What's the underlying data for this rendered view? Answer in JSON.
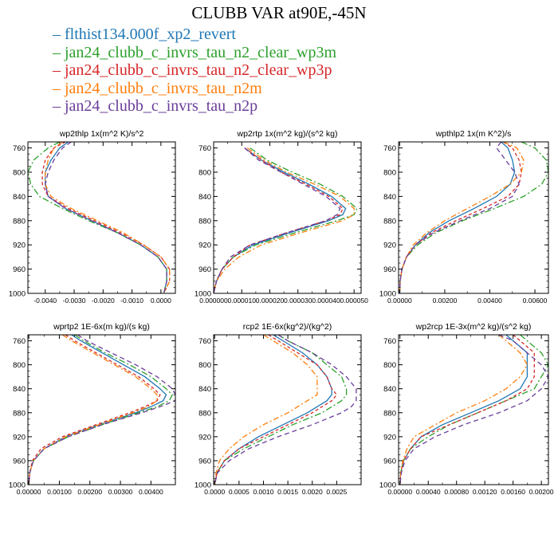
{
  "title": "CLUBB VAR at90E,-45N",
  "legend": [
    {
      "label": "flthist134.000f_xp2_revert",
      "color": "#1f77b4"
    },
    {
      "label": "jan24_clubb_c_invrs_tau_n2_clear_wp3m",
      "color": "#2ca02c"
    },
    {
      "label": "jan24_clubb_c_invrs_tau_n2_clear_wp3p",
      "color": "#d62728"
    },
    {
      "label": "jan24_clubb_c_invrs_tau_n2m",
      "color": "#ff7f0e"
    },
    {
      "label": "jan24_clubb_c_invrs_tau_n2p",
      "color": "#6a3d9a"
    }
  ],
  "chart_data": [
    {
      "type": "line",
      "title": "wp2thlp  1x(m^2 K)/s^2",
      "y": [
        750,
        760,
        780,
        800,
        820,
        840,
        860,
        880,
        900,
        920,
        940,
        960,
        980,
        1000
      ],
      "ylim": [
        1000,
        750
      ],
      "yticks": [
        760,
        800,
        840,
        880,
        920,
        960,
        1000
      ],
      "xlim": [
        -0.0046,
        0.0005
      ],
      "xticks": [
        -0.004,
        -0.003,
        -0.002,
        -0.001,
        0.0
      ],
      "xticklabels": [
        "-0.0040",
        "-0.0030",
        "-0.0020",
        "-0.0010",
        "0.0000"
      ],
      "series": [
        {
          "values": [
            -0.0032,
            -0.0035,
            -0.0038,
            -0.004,
            -0.004,
            -0.0039,
            -0.0033,
            -0.0024,
            -0.0015,
            -0.0007,
            -0.0001,
            0.0002,
            0.0002,
            0.0001
          ]
        },
        {
          "values": [
            -0.0035,
            -0.0039,
            -0.0044,
            -0.0046,
            -0.0045,
            -0.0042,
            -0.0034,
            -0.0025,
            -0.0015,
            -0.0007,
            -0.0001,
            0.0002,
            0.0002,
            0.0001
          ]
        },
        {
          "values": [
            -0.0033,
            -0.0037,
            -0.004,
            -0.0041,
            -0.0041,
            -0.0039,
            -0.0032,
            -0.0023,
            -0.0014,
            -0.0006,
            0.0,
            0.0003,
            0.0003,
            0.0001
          ]
        },
        {
          "values": [
            -0.0034,
            -0.0037,
            -0.0039,
            -0.004,
            -0.004,
            -0.0038,
            -0.0031,
            -0.0022,
            -0.0013,
            -0.0006,
            0.0,
            0.0003,
            0.0003,
            0.0001
          ]
        },
        {
          "values": [
            -0.0031,
            -0.0034,
            -0.0037,
            -0.0039,
            -0.004,
            -0.0039,
            -0.0033,
            -0.0024,
            -0.0015,
            -0.0007,
            -0.0001,
            0.0002,
            0.0002,
            0.0001
          ]
        }
      ]
    },
    {
      "type": "line",
      "title": "wp2rtp  1x(m^2 kg)/(s^2 kg)",
      "y": [
        760,
        780,
        800,
        820,
        840,
        860,
        870,
        880,
        900,
        920,
        940,
        960,
        980,
        1000
      ],
      "ylim": [
        1000,
        750
      ],
      "yticks": [
        760,
        800,
        840,
        880,
        920,
        960,
        1000
      ],
      "xlim": [
        0,
        5.25e-05
      ],
      "xticks": [
        0,
        1e-05,
        2e-05,
        3e-05,
        4e-05,
        5e-05
      ],
      "xticklabels": [
        "0.000000",
        "0.000010",
        "0.000020",
        "0.000030",
        "0.000040",
        "0.000050"
      ],
      "series": [
        {
          "values": [
            1.1e-05,
            1.7e-05,
            2.5e-05,
            3.4e-05,
            4.2e-05,
            4.7e-05,
            4.6e-05,
            4.1e-05,
            2.7e-05,
            1.4e-05,
            7e-06,
            3e-06,
            1e-06,
            0.0
          ]
        },
        {
          "values": [
            1.3e-05,
            1.9e-05,
            2.8e-05,
            3.8e-05,
            4.6e-05,
            5.1e-05,
            5e-05,
            4.4e-05,
            2.9e-05,
            1.5e-05,
            7e-06,
            3e-06,
            1e-06,
            0.0
          ]
        },
        {
          "values": [
            1.1e-05,
            1.7e-05,
            2.4e-05,
            3.3e-05,
            4.1e-05,
            4.6e-05,
            4.5e-05,
            4e-05,
            2.6e-05,
            1.3e-05,
            7e-06,
            3e-06,
            1e-06,
            0.0
          ]
        },
        {
          "values": [
            1.2e-05,
            1.8e-05,
            2.6e-05,
            3.6e-05,
            4.5e-05,
            5e-05,
            5e-05,
            4.6e-05,
            3.1e-05,
            1.7e-05,
            9e-06,
            4e-06,
            1e-06,
            0.0
          ]
        },
        {
          "values": [
            1.1e-05,
            1.6e-05,
            2.4e-05,
            3.2e-05,
            4e-05,
            4.5e-05,
            4.4e-05,
            4e-05,
            2.6e-05,
            1.3e-05,
            6e-06,
            3e-06,
            1e-06,
            0.0
          ]
        }
      ]
    },
    {
      "type": "line",
      "title": "wpthlp2  1x(m K^2)/s",
      "y": [
        750,
        760,
        780,
        800,
        820,
        840,
        860,
        880,
        900,
        920,
        940,
        960,
        980,
        1000
      ],
      "ylim": [
        1000,
        750
      ],
      "yticks": [
        760,
        800,
        840,
        880,
        920,
        960,
        1000
      ],
      "xlim": [
        -5e-05,
        0.0066
      ],
      "xticks": [
        0,
        0.002,
        0.004,
        0.006
      ],
      "xticklabels": [
        "0.00000",
        "0.00200",
        "0.00400",
        "0.00600"
      ],
      "series": [
        {
          "values": [
            0.0045,
            0.0048,
            0.005,
            0.0051,
            0.0049,
            0.0043,
            0.0033,
            0.0022,
            0.0013,
            0.0007,
            0.0003,
            0.0001,
            2e-05,
            0.0
          ]
        },
        {
          "values": [
            0.0054,
            0.006,
            0.0065,
            0.0066,
            0.0063,
            0.0055,
            0.0042,
            0.0028,
            0.0016,
            0.0008,
            0.0003,
            0.0001,
            2e-05,
            0.0
          ]
        },
        {
          "values": [
            0.0046,
            0.005,
            0.0053,
            0.0054,
            0.0053,
            0.0048,
            0.0037,
            0.0025,
            0.0014,
            0.0007,
            0.0003,
            0.0001,
            2e-05,
            0.0
          ]
        },
        {
          "values": [
            0.0046,
            0.0052,
            0.0055,
            0.0054,
            0.0049,
            0.004,
            0.003,
            0.002,
            0.0012,
            0.0006,
            0.0003,
            0.0001,
            2e-05,
            0.0
          ]
        },
        {
          "values": [
            0.0045,
            0.0043,
            0.0047,
            0.0051,
            0.0053,
            0.005,
            0.004,
            0.0027,
            0.0015,
            0.0007,
            0.0003,
            0.0001,
            2e-05,
            0.0
          ]
        }
      ]
    },
    {
      "type": "line",
      "title": "wprtp2  1E-6x(m kg)/(s kg)",
      "y": [
        750,
        760,
        780,
        800,
        820,
        840,
        850,
        860,
        870,
        880,
        900,
        920,
        940,
        960,
        980,
        1000
      ],
      "ylim": [
        1000,
        750
      ],
      "yticks": [
        760,
        800,
        840,
        880,
        920,
        960,
        1000
      ],
      "xlim": [
        -3e-05,
        0.0048
      ],
      "xticks": [
        0,
        0.001,
        0.002,
        0.003,
        0.004
      ],
      "xticklabels": [
        "0.00000",
        "0.00100",
        "0.00200",
        "0.00300",
        "0.00400"
      ],
      "series": [
        {
          "values": [
            0.0014,
            0.0017,
            0.0024,
            0.0031,
            0.0038,
            0.0043,
            0.0045,
            0.0044,
            0.004,
            0.0035,
            0.0023,
            0.0012,
            0.0005,
            0.00015,
            3e-05,
            0.0
          ]
        },
        {
          "values": [
            0.0015,
            0.0018,
            0.0025,
            0.0033,
            0.004,
            0.0045,
            0.0047,
            0.0046,
            0.0042,
            0.0036,
            0.0024,
            0.0013,
            0.0005,
            0.00015,
            3e-05,
            0.0
          ]
        },
        {
          "values": [
            0.0012,
            0.0015,
            0.0022,
            0.0029,
            0.0036,
            0.0041,
            0.0043,
            0.0042,
            0.0038,
            0.0033,
            0.0022,
            0.0011,
            0.0004,
            0.00012,
            3e-05,
            0.0
          ]
        },
        {
          "values": [
            0.0011,
            0.0014,
            0.0021,
            0.0028,
            0.0035,
            0.004,
            0.0042,
            0.0042,
            0.0039,
            0.0034,
            0.0023,
            0.0012,
            0.0005,
            0.00015,
            3e-05,
            0.0
          ]
        },
        {
          "values": [
            0.0016,
            0.0019,
            0.0027,
            0.0035,
            0.0042,
            0.0047,
            0.0048,
            0.0048,
            0.0043,
            0.0037,
            0.0024,
            0.0013,
            0.0005,
            0.00015,
            3e-05,
            0.0
          ]
        }
      ]
    },
    {
      "type": "line",
      "title": "rcp2  1E-6x(kg^2)/(kg^2)",
      "y": [
        750,
        760,
        780,
        800,
        820,
        840,
        850,
        860,
        870,
        880,
        900,
        920,
        940,
        960,
        980,
        1000
      ],
      "ylim": [
        1000,
        750
      ],
      "yticks": [
        760,
        800,
        840,
        880,
        920,
        960,
        1000
      ],
      "xlim": [
        -2e-05,
        0.003
      ],
      "xticks": [
        0,
        0.0005,
        0.001,
        0.0015,
        0.002,
        0.0025
      ],
      "xticklabels": [
        "0.0000",
        "0.0005",
        "0.0010",
        "0.0015",
        "0.0020",
        "0.0025"
      ],
      "series": [
        {
          "values": [
            0.0012,
            0.0014,
            0.0018,
            0.0021,
            0.0023,
            0.0024,
            0.0024,
            0.0023,
            0.0021,
            0.0019,
            0.0014,
            0.0009,
            0.0005,
            0.0002,
            5e-05,
            0.0
          ]
        },
        {
          "values": [
            0.0013,
            0.0015,
            0.002,
            0.0023,
            0.0026,
            0.0027,
            0.0027,
            0.0026,
            0.0024,
            0.0022,
            0.0016,
            0.0011,
            0.0006,
            0.0002,
            5e-05,
            0.0
          ]
        },
        {
          "values": [
            0.0011,
            0.0013,
            0.0017,
            0.0021,
            0.0023,
            0.0024,
            0.0025,
            0.0024,
            0.0022,
            0.002,
            0.0015,
            0.001,
            0.0005,
            0.0002,
            5e-05,
            0.0
          ]
        },
        {
          "values": [
            0.001,
            0.0012,
            0.0016,
            0.0019,
            0.0021,
            0.0021,
            0.0021,
            0.0019,
            0.0017,
            0.0015,
            0.001,
            0.0006,
            0.0003,
            0.0001,
            3e-05,
            0.0
          ]
        },
        {
          "values": [
            0.0013,
            0.0015,
            0.002,
            0.0024,
            0.0027,
            0.0029,
            0.0029,
            0.0029,
            0.0028,
            0.0026,
            0.002,
            0.0013,
            0.0007,
            0.0003,
            6e-05,
            0.0
          ]
        }
      ]
    },
    {
      "type": "line",
      "title": "wp2rcp  1E-3x(m^2 kg)/(s^2 kg)",
      "y": [
        750,
        760,
        780,
        800,
        820,
        840,
        860,
        880,
        900,
        920,
        940,
        960,
        980,
        1000
      ],
      "ylim": [
        1000,
        750
      ],
      "yticks": [
        760,
        800,
        840,
        880,
        920,
        960,
        1000
      ],
      "xlim": [
        -2e-05,
        0.0021
      ],
      "xticks": [
        0,
        0.0004,
        0.0008,
        0.0012,
        0.0016,
        0.002
      ],
      "xticklabels": [
        "0.00000",
        "0.00040",
        "0.00080",
        "0.00120",
        "0.00160",
        "0.00200"
      ],
      "series": [
        {
          "values": [
            0.0015,
            0.0016,
            0.0018,
            0.0018,
            0.0018,
            0.0017,
            0.0014,
            0.001,
            0.0006,
            0.0003,
            0.00015,
            5e-05,
            1e-05,
            0.0
          ]
        },
        {
          "values": [
            0.0017,
            0.0018,
            0.002,
            0.0021,
            0.002,
            0.0019,
            0.0015,
            0.0011,
            0.0007,
            0.0004,
            0.00015,
            5e-05,
            1e-05,
            0.0
          ]
        },
        {
          "values": [
            0.0016,
            0.0017,
            0.0019,
            0.0019,
            0.0019,
            0.0018,
            0.0015,
            0.0011,
            0.0007,
            0.0003,
            0.00015,
            5e-05,
            1e-05,
            0.0
          ]
        },
        {
          "values": [
            0.0014,
            0.0015,
            0.0017,
            0.0018,
            0.0017,
            0.0015,
            0.0012,
            0.0008,
            0.0005,
            0.0002,
            0.0001,
            4e-05,
            1e-05,
            0.0
          ]
        },
        {
          "values": [
            0.0014,
            0.0016,
            0.0018,
            0.002,
            0.0021,
            0.002,
            0.0018,
            0.0014,
            0.0009,
            0.0005,
            0.0002,
            7e-05,
            2e-05,
            0.0
          ]
        }
      ]
    }
  ]
}
